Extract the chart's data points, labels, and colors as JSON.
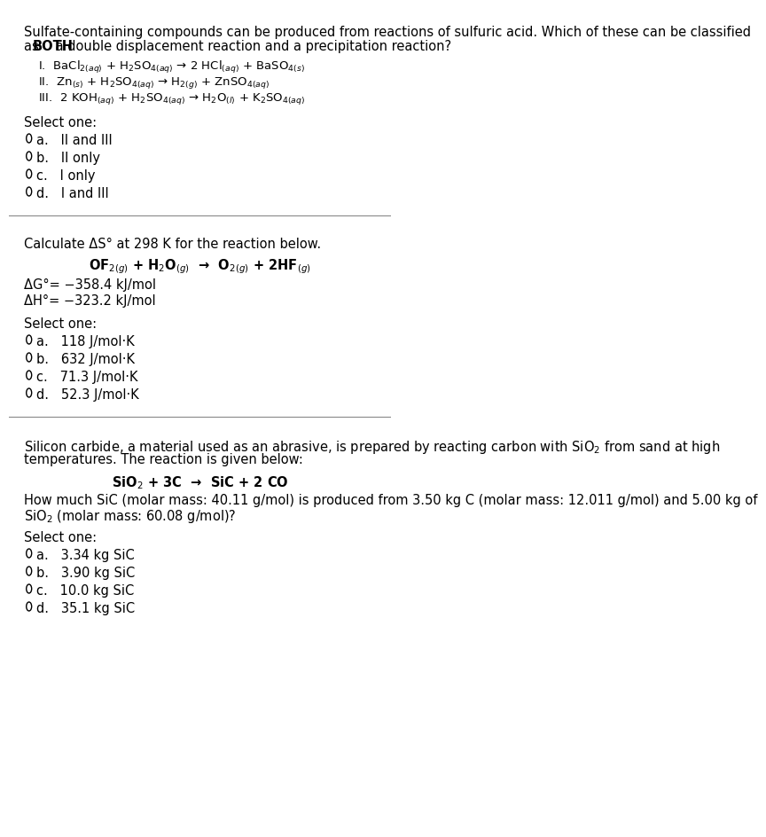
{
  "bg_color": "#ffffff",
  "text_color": "#000000",
  "font_size": 10.5,
  "q1": {
    "question": "Sulfate-containing compounds can be produced from reactions of sulfuric acid. Which of these can be classified\nas ",
    "question_bold": "BOTH",
    "question_rest": " a double displacement reaction and a precipitation reaction?",
    "reactions": [
      "I.  BaCl$_{2(aq)}$ + H$_2$SO$_{4(aq)}$ → 2 HCl$_{(aq)}$ + BaSO$_{4(s)}$",
      "II.  Zn$_{(s)}$ + H$_2$SO$_{4(aq)}$ → H$_{2(g)}$ + ZnSO$_{4(aq)}$",
      "III.  2 KOH$_{(aq)}$ + H$_2$SO$_{4(aq)}$ → H$_2$O$_{(l)}$ + K$_2$SO$_{4(aq)}$"
    ],
    "select": "Select one:",
    "options": [
      "a.   II and III",
      "b.   II only",
      "c.   I only",
      "d.   I and III"
    ]
  },
  "q2": {
    "question": "Calculate ΔS° at 298 K for the reaction below.",
    "reaction_centered": "OF$_{2(g)}$ + H$_2$O$_{(g)}$  →  O$_{2(g)}$ + 2HF$_{(g)}$",
    "given": [
      "ΔG°= −358.4 kJ/mol",
      "ΔH°= −323.2 kJ/mol"
    ],
    "select": "Select one:",
    "options": [
      "a.   118 J/mol·K",
      "b.   632 J/mol·K",
      "c.   71.3 J/mol·K",
      "d.   52.3 J/mol·K"
    ]
  },
  "q3": {
    "question": "Silicon carbide, a material used as an abrasive, is prepared by reacting carbon with SiO$_2$ from sand at high\ntemperatures. The reaction is given below:",
    "reaction_centered": "SiO$_2$ + 3C  →  SiC + 2 CO",
    "body": "How much SiC (molar mass: 40.11 g/mol) is produced from 3.50 kg C (molar mass: 12.011 g/mol) and 5.00 kg of\nSiO$_2$ (molar mass: 60.08 g/mol)?",
    "select": "Select one:",
    "options": [
      "a.   3.34 kg SiC",
      "b.   3.90 kg SiC",
      "c.   10.0 kg SiC",
      "d.   35.1 kg SiC"
    ]
  }
}
